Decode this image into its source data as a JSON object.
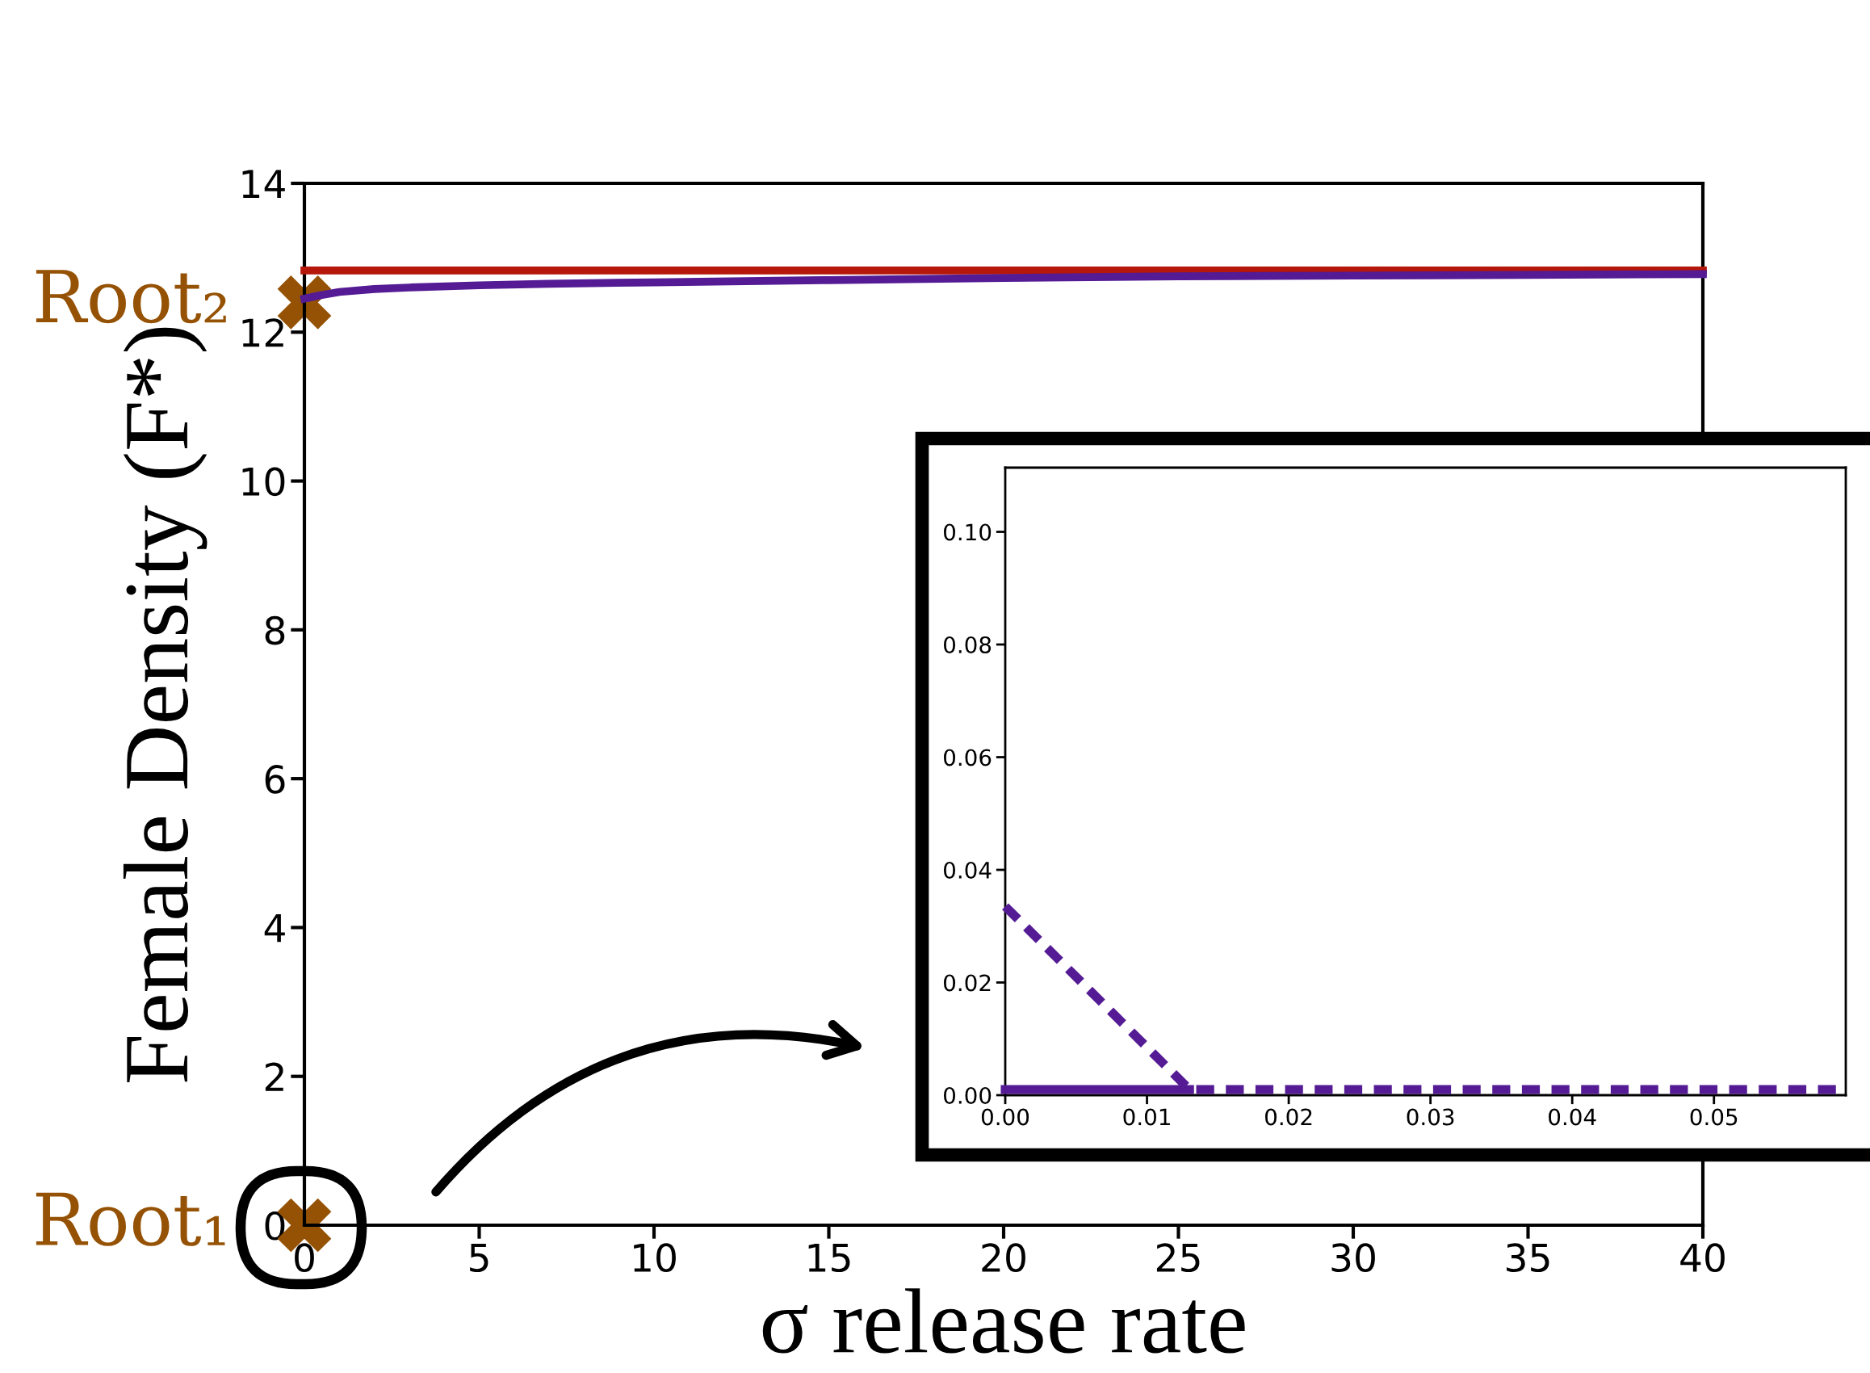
{
  "chart_data": [
    {
      "type": "line",
      "xlabel": "σ release rate",
      "ylabel": "Female Density (F*)",
      "xlim": [
        0,
        40
      ],
      "ylim": [
        0,
        14
      ],
      "xticks": [
        0,
        5,
        10,
        15,
        20,
        25,
        30,
        35,
        40
      ],
      "yticks": [
        0,
        2,
        4,
        6,
        8,
        10,
        12,
        14
      ],
      "grid": false,
      "legend": false,
      "series": [
        {
          "color": "#b5170a",
          "x": [
            0,
            40
          ],
          "values": [
            12.83,
            12.83
          ],
          "line_style": "solid",
          "marker": "none"
        },
        {
          "color": "#541b94",
          "x": [
            0,
            0.5,
            1,
            2,
            3,
            5,
            7,
            10,
            15,
            20,
            25,
            30,
            35,
            40
          ],
          "values": [
            12.45,
            12.5,
            12.54,
            12.58,
            12.6,
            12.63,
            12.65,
            12.67,
            12.7,
            12.73,
            12.75,
            12.76,
            12.77,
            12.78
          ],
          "line_style": "solid",
          "marker": "none"
        },
        {
          "type": "scatter",
          "color": "#955204",
          "x": [
            0,
            0
          ],
          "values": [
            12.4,
            0
          ],
          "marker": "cross"
        }
      ],
      "annotations": [
        {
          "text": "Root₂",
          "x": 0,
          "y": 12.4
        },
        {
          "text": "Root₁",
          "x": 0,
          "y": 0
        }
      ]
    },
    {
      "type": "line",
      "xlim": [
        0,
        0.0593
      ],
      "ylim": [
        0,
        0.1114
      ],
      "xticks": [
        {
          "value": 0,
          "label": "0.00"
        },
        {
          "value": 0.01,
          "label": "0.01"
        },
        {
          "value": 0.02,
          "label": "0.02"
        },
        {
          "value": 0.03,
          "label": "0.03"
        },
        {
          "value": 0.04,
          "label": "0.04"
        },
        {
          "value": 0.05,
          "label": "0.05"
        }
      ],
      "yticks": [
        {
          "value": 0,
          "label": "0.00"
        },
        {
          "value": 0.02,
          "label": "0.02"
        },
        {
          "value": 0.04,
          "label": "0.04"
        },
        {
          "value": 0.06,
          "label": "0.06"
        },
        {
          "value": 0.08,
          "label": "0.08"
        },
        {
          "value": 0.1,
          "label": "0.10"
        }
      ],
      "grid": false,
      "legend": false,
      "series": [
        {
          "color": "#541b94",
          "x": [
            0,
            0.013
          ],
          "values": [
            0.001,
            0.001
          ],
          "line_style": "solid",
          "marker": "none"
        },
        {
          "color": "#541b94",
          "x": [
            0,
            0.013,
            0.0593
          ],
          "values": [
            0.0335,
            0.001,
            0.001
          ],
          "line_style": "dashed",
          "marker": "none"
        }
      ]
    }
  ]
}
